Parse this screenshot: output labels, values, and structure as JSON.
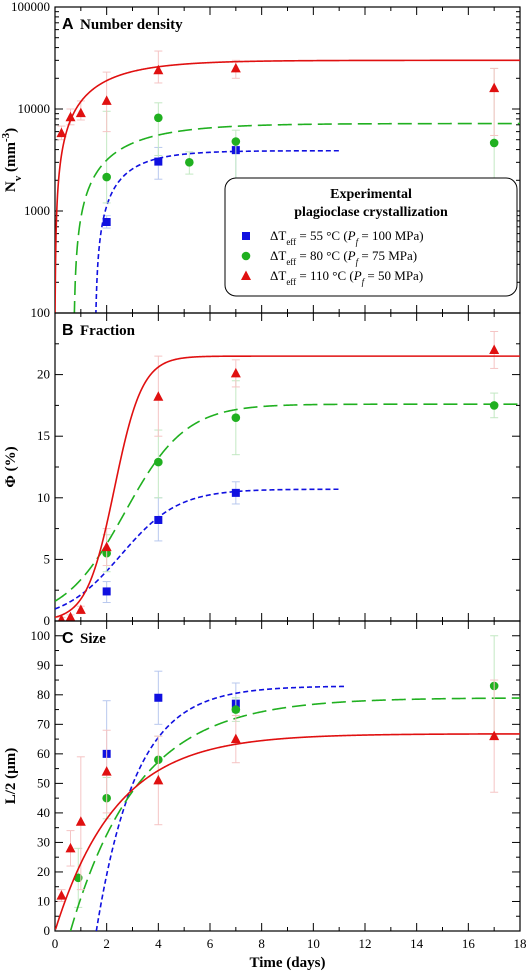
{
  "chart_data": [
    {
      "type": "scatter",
      "panel_letter": "A",
      "title": "Number density",
      "ylabel": "Nv (mm-3)",
      "ylabel_main": "N",
      "ylabel_sub": "v",
      "ylabel_rest": " (mm",
      "ylabel_sup": "-3",
      "ylabel_close": ")",
      "yscale": "log",
      "ylim": [
        100,
        100000
      ],
      "xlim": [
        0,
        18
      ],
      "yticks": [
        100,
        1000,
        10000,
        100000
      ],
      "ytick_labels": [
        "100",
        "1000",
        "10000",
        "100000"
      ],
      "series": [
        {
          "key": "dt55",
          "color": "#1010e0",
          "marker": "square",
          "fit_style": "short-dash",
          "points": [
            {
              "x": 2,
              "y": 780,
              "lo": 680,
              "hi": 900
            },
            {
              "x": 4,
              "y": 3050,
              "lo": 2050,
              "hi": 4200
            },
            {
              "x": 7,
              "y": 3950,
              "lo": 900,
              "hi": 4300
            }
          ],
          "fit": {
            "model": "rise",
            "A": 3900,
            "k": 0.75,
            "t0": 1.55,
            "xmax": 11,
            "ymin": 100
          }
        },
        {
          "key": "dt80",
          "color": "#20b020",
          "marker": "circle",
          "fit_style": "long-dash",
          "points": [
            {
              "x": 2,
              "y": 2150,
              "lo": 1200,
              "hi": 9500
            },
            {
              "x": 4,
              "y": 8200,
              "lo": 3500,
              "hi": 11500
            },
            {
              "x": 5.2,
              "y": 3000,
              "lo": 2300,
              "hi": 3800
            },
            {
              "x": 7,
              "y": 4800,
              "lo": 1000,
              "hi": 6200
            },
            {
              "x": 17,
              "y": 4650,
              "lo": 700,
              "hi": 25000
            }
          ],
          "fit": {
            "model": "rise",
            "A": 7200,
            "k": 0.45,
            "t0": 0.72,
            "xmax": 18,
            "ymin": 100
          }
        },
        {
          "key": "dt110",
          "color": "#e01010",
          "marker": "triangle",
          "fit_style": "solid",
          "points": [
            {
              "x": 0.25,
              "y": 5800,
              "lo": 5000,
              "hi": 6800
            },
            {
              "x": 0.6,
              "y": 8300,
              "lo": 7000,
              "hi": 10000
            },
            {
              "x": 1,
              "y": 9100,
              "lo": 7800,
              "hi": 12000
            },
            {
              "x": 2,
              "y": 12000,
              "lo": 6000,
              "hi": 23000
            },
            {
              "x": 4,
              "y": 24000,
              "lo": 18000,
              "hi": 37000
            },
            {
              "x": 7,
              "y": 25000,
              "lo": 20000,
              "hi": 30000
            },
            {
              "x": 17,
              "y": 16000,
              "lo": 5500,
              "hi": 25000
            }
          ],
          "fit": {
            "model": "rise",
            "A": 30000,
            "k": 0.5,
            "t0": 0,
            "xmax": 18,
            "ymin": 100
          }
        }
      ]
    },
    {
      "type": "scatter",
      "panel_letter": "B",
      "title": "Fraction",
      "ylabel": "Φ (%)",
      "yscale": "linear",
      "ylim": [
        0,
        25
      ],
      "xlim": [
        0,
        18
      ],
      "yticks": [
        0,
        5,
        10,
        15,
        20
      ],
      "ytick_labels": [
        "0",
        "5",
        "10",
        "15",
        "20"
      ],
      "series": [
        {
          "key": "dt55",
          "color": "#1010e0",
          "marker": "square",
          "fit_style": "short-dash",
          "points": [
            {
              "x": 2,
              "y": 2.4,
              "lo": 1.5,
              "hi": 3.2
            },
            {
              "x": 4,
              "y": 8.2,
              "lo": 6.5,
              "hi": 10
            },
            {
              "x": 7,
              "y": 10.4,
              "lo": 9.5,
              "hi": 11.3
            }
          ],
          "fit": {
            "model": "sigmoid",
            "A": 10.7,
            "k": 0.9,
            "t0": 2.55,
            "xmax": 11
          }
        },
        {
          "key": "dt80",
          "color": "#20b020",
          "marker": "circle",
          "fit_style": "long-dash",
          "points": [
            {
              "x": 2,
              "y": 5.5,
              "lo": 4,
              "hi": 7
            },
            {
              "x": 4,
              "y": 12.9,
              "lo": 10,
              "hi": 15.5
            },
            {
              "x": 7,
              "y": 16.5,
              "lo": 13.5,
              "hi": 19.5
            },
            {
              "x": 17,
              "y": 17.5,
              "lo": 16.5,
              "hi": 18.5
            }
          ],
          "fit": {
            "model": "sigmoid",
            "A": 17.6,
            "k": 0.85,
            "t0": 2.7,
            "xmax": 18
          }
        },
        {
          "key": "dt110",
          "color": "#e01010",
          "marker": "triangle",
          "fit_style": "solid",
          "points": [
            {
              "x": 0.25,
              "y": 0.1,
              "lo": 0,
              "hi": 0.3
            },
            {
              "x": 0.6,
              "y": 0.3,
              "lo": 0.1,
              "hi": 0.5
            },
            {
              "x": 1,
              "y": 0.9,
              "lo": 0.6,
              "hi": 1.2
            },
            {
              "x": 2,
              "y": 6,
              "lo": 4.5,
              "hi": 7.5
            },
            {
              "x": 4,
              "y": 18.2,
              "lo": 15,
              "hi": 21.5
            },
            {
              "x": 7,
              "y": 20.1,
              "lo": 19,
              "hi": 21.2
            },
            {
              "x": 17,
              "y": 22,
              "lo": 20.5,
              "hi": 23.5
            }
          ],
          "fit": {
            "model": "sigmoid",
            "A": 21.5,
            "k": 1.85,
            "t0": 2.3,
            "xmax": 18
          }
        }
      ]
    },
    {
      "type": "scatter",
      "panel_letter": "C",
      "title": "Size",
      "ylabel": "L/2 (µm)",
      "yscale": "linear",
      "ylim": [
        0,
        105
      ],
      "xlim": [
        0,
        18
      ],
      "yticks": [
        0,
        10,
        20,
        30,
        40,
        50,
        60,
        70,
        80,
        90,
        100
      ],
      "ytick_labels": [
        "0",
        "10",
        "20",
        "30",
        "40",
        "50",
        "60",
        "70",
        "80",
        "90",
        "100"
      ],
      "xlabel": "Time (days)",
      "xticks": [
        0,
        2,
        4,
        6,
        8,
        10,
        12,
        14,
        16,
        18
      ],
      "xtick_labels": [
        "0",
        "2",
        "4",
        "6",
        "8",
        "10",
        "12",
        "14",
        "16",
        "18"
      ],
      "series": [
        {
          "key": "dt55",
          "color": "#1010e0",
          "marker": "square",
          "fit_style": "short-dash",
          "points": [
            {
              "x": 2,
              "y": 60,
              "lo": 45,
              "hi": 78
            },
            {
              "x": 4,
              "y": 79,
              "lo": 70,
              "hi": 88
            },
            {
              "x": 7,
              "y": 77,
              "lo": 74,
              "hi": 84
            }
          ],
          "fit": {
            "model": "step-rise",
            "A": 83,
            "k": 0.65,
            "t0": 1.6,
            "xmax": 11.2,
            "ymin": 0
          }
        },
        {
          "key": "dt80",
          "color": "#20b020",
          "marker": "circle",
          "fit_style": "long-dash",
          "points": [
            {
              "x": 0.9,
              "y": 18,
              "lo": 8,
              "hi": 28
            },
            {
              "x": 2,
              "y": 45,
              "lo": 38,
              "hi": 52
            },
            {
              "x": 4,
              "y": 58,
              "lo": 50,
              "hi": 66
            },
            {
              "x": 7,
              "y": 75,
              "lo": 71,
              "hi": 79
            },
            {
              "x": 17,
              "y": 83,
              "lo": 66,
              "hi": 100
            }
          ],
          "fit": {
            "model": "step-rise",
            "A": 79,
            "k": 0.38,
            "t0": 0.6,
            "xmax": 18,
            "ymin": 0
          }
        },
        {
          "key": "dt110",
          "color": "#e01010",
          "marker": "triangle",
          "fit_style": "solid",
          "points": [
            {
              "x": 0.25,
              "y": 12,
              "lo": 10,
              "hi": 14
            },
            {
              "x": 0.6,
              "y": 28,
              "lo": 22,
              "hi": 34
            },
            {
              "x": 1,
              "y": 37,
              "lo": 14,
              "hi": 59
            },
            {
              "x": 2,
              "y": 54,
              "lo": 40,
              "hi": 68
            },
            {
              "x": 4,
              "y": 51,
              "lo": 36,
              "hi": 66
            },
            {
              "x": 7,
              "y": 65,
              "lo": 57,
              "hi": 73
            },
            {
              "x": 17,
              "y": 66,
              "lo": 47,
              "hi": 85
            }
          ],
          "fit": {
            "model": "rise",
            "A": 66.8,
            "k": 0.42,
            "t0": 0,
            "xmax": 18,
            "ymin": 0
          }
        }
      ]
    }
  ],
  "legend": {
    "title_line1": "Experimental",
    "title_line2": "plagioclase crystallization",
    "entries": [
      {
        "key": "dt55",
        "delta": "ΔT",
        "sub": "eff",
        "text": " = 55 °C (",
        "p": "P",
        "psub": "f",
        "rest": " = 100 MPa)",
        "full": "ΔTeff = 55 °C (Pf = 100 MPa)"
      },
      {
        "key": "dt80",
        "delta": "ΔT",
        "sub": "eff",
        "text": " = 80 °C (",
        "p": "P",
        "psub": "f",
        "rest": " = 75 MPa)",
        "full": "ΔTeff = 80 °C (Pf = 75 MPa)"
      },
      {
        "key": "dt110",
        "delta": "ΔT",
        "sub": "eff",
        "text": " = 110 °C (",
        "p": "P",
        "psub": "f",
        "rest": " = 50 MPa)",
        "full": "ΔTeff = 110 °C (Pf = 50 MPa)"
      }
    ]
  }
}
